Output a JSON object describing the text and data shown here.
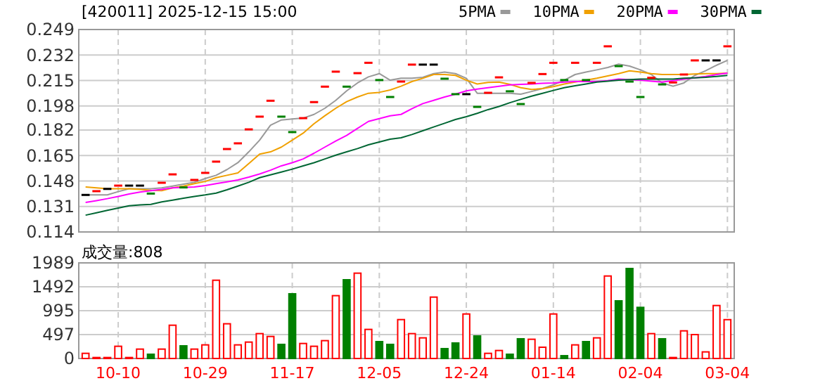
{
  "chart_data": [
    {
      "type": "candlestick",
      "title": "[420011] 2025-12-15 15:00",
      "categories": [
        null,
        null,
        null,
        null,
        null,
        null,
        null,
        null,
        null,
        null,
        null,
        null,
        null,
        null,
        null,
        null,
        null,
        null,
        null,
        null,
        null,
        null,
        null,
        null,
        null,
        null,
        null,
        null,
        null,
        null,
        null,
        null,
        null,
        null,
        null,
        null,
        null,
        null,
        null,
        null,
        null,
        null,
        null,
        null,
        null,
        null,
        null,
        null,
        null,
        null,
        null,
        null,
        null,
        null,
        null,
        null,
        null,
        null,
        null,
        null
      ],
      "ohlc": [
        [
          0.1387,
          0.1387,
          0.1387,
          0.1387
        ],
        [
          0.1412,
          0.1412,
          0.1412,
          0.1412
        ],
        [
          0.1427,
          0.1427,
          0.1427,
          0.1427
        ],
        [
          0.1449,
          0.1449,
          0.1449,
          0.1449
        ],
        [
          0.1449,
          0.1449,
          0.1449,
          0.1449
        ],
        [
          0.1449,
          0.1449,
          0.1449,
          0.1449
        ],
        [
          0.1396,
          0.1396,
          0.1396,
          0.1396
        ],
        [
          0.1468,
          0.1468,
          0.1468,
          0.1468
        ],
        [
          0.1524,
          0.1524,
          0.1524,
          0.1524
        ],
        [
          0.1437,
          0.1437,
          0.1437,
          0.1437
        ],
        [
          0.1487,
          0.1487,
          0.1487,
          0.1487
        ],
        [
          0.1534,
          0.1534,
          0.1534,
          0.1534
        ],
        [
          0.1609,
          0.1609,
          0.1609,
          0.1609
        ],
        [
          0.1693,
          0.1693,
          0.1693,
          0.1693
        ],
        [
          0.1731,
          0.1731,
          0.1731,
          0.1731
        ],
        [
          0.1824,
          0.1824,
          0.1824,
          0.1824
        ],
        [
          0.1909,
          0.1909,
          0.1909,
          0.1909
        ],
        [
          0.2015,
          0.2015,
          0.2015,
          0.2015
        ],
        [
          0.1909,
          0.1909,
          0.1909,
          0.1909
        ],
        [
          0.1806,
          0.1806,
          0.1806,
          0.1806
        ],
        [
          0.1899,
          0.1899,
          0.1899,
          0.1899
        ],
        [
          0.2006,
          0.2006,
          0.2006,
          0.2006
        ],
        [
          0.2109,
          0.2109,
          0.2109,
          0.2109
        ],
        [
          0.2209,
          0.2209,
          0.2209,
          0.2209
        ],
        [
          0.2109,
          0.2109,
          0.2109,
          0.2109
        ],
        [
          0.2199,
          0.2199,
          0.2199,
          0.2199
        ],
        [
          0.2268,
          0.2268,
          0.2268,
          0.2268
        ],
        [
          0.2153,
          0.2153,
          0.2153,
          0.2153
        ],
        [
          0.204,
          0.204,
          0.204,
          0.204
        ],
        [
          0.2143,
          0.2143,
          0.2143,
          0.2143
        ],
        [
          0.2256,
          0.2256,
          0.2256,
          0.2256
        ],
        [
          0.2256,
          0.2256,
          0.2256,
          0.2256
        ],
        [
          0.2256,
          0.2256,
          0.2256,
          0.2256
        ],
        [
          0.2162,
          0.2162,
          0.2162,
          0.2162
        ],
        [
          0.2059,
          0.2059,
          0.2059,
          0.2059
        ],
        [
          0.2059,
          0.2059,
          0.2059,
          0.2059
        ],
        [
          0.1974,
          0.1974,
          0.1974,
          0.1974
        ],
        [
          0.2068,
          0.2068,
          0.2068,
          0.2068
        ],
        [
          0.2171,
          0.2171,
          0.2171,
          0.2171
        ],
        [
          0.2078,
          0.2078,
          0.2078,
          0.2078
        ],
        [
          0.1993,
          0.1993,
          0.1993,
          0.1993
        ],
        [
          0.2134,
          0.2134,
          0.2134,
          0.2134
        ],
        [
          0.2193,
          0.2193,
          0.2193,
          0.2193
        ],
        [
          0.2268,
          0.2268,
          0.2268,
          0.2268
        ],
        [
          0.2153,
          0.2153,
          0.2153,
          0.2153
        ],
        [
          0.2268,
          0.2268,
          0.2268,
          0.2268
        ],
        [
          0.2153,
          0.2153,
          0.2153,
          0.2153
        ],
        [
          0.2268,
          0.2268,
          0.2268,
          0.2268
        ],
        [
          0.2378,
          0.2378,
          0.2378,
          0.2378
        ],
        [
          0.2246,
          0.2246,
          0.2246,
          0.2246
        ],
        [
          0.2143,
          0.2143,
          0.2143,
          0.2143
        ],
        [
          0.204,
          0.204,
          0.204,
          0.204
        ],
        [
          0.2168,
          0.2168,
          0.2168,
          0.2168
        ],
        [
          0.2124,
          0.2124,
          0.2124,
          0.2124
        ],
        [
          0.2137,
          0.2137,
          0.2137,
          0.2137
        ],
        [
          0.219,
          0.219,
          0.219,
          0.219
        ],
        [
          0.2284,
          0.2284,
          0.2284,
          0.2284
        ],
        [
          0.2284,
          0.2284,
          0.2284,
          0.2284
        ],
        [
          0.2284,
          0.2284,
          0.2284,
          0.2284
        ],
        [
          0.2378,
          0.2378,
          0.2378,
          0.2378
        ]
      ],
      "colors": [
        "#000000",
        "#ff0000",
        "#000000",
        "#ff0000",
        "#000000",
        "#000000",
        "#008000",
        "#ff0000",
        "#ff0000",
        "#008000",
        "#ff0000",
        "#ff0000",
        "#ff0000",
        "#ff0000",
        "#ff0000",
        "#ff0000",
        "#ff0000",
        "#ff0000",
        "#008000",
        "#008000",
        "#ff0000",
        "#ff0000",
        "#ff0000",
        "#ff0000",
        "#008000",
        "#ff0000",
        "#ff0000",
        "#008000",
        "#008000",
        "#ff0000",
        "#ff0000",
        "#000000",
        "#000000",
        "#008000",
        "#008000",
        "#000000",
        "#008000",
        "#ff0000",
        "#ff0000",
        "#008000",
        "#008000",
        "#ff0000",
        "#ff0000",
        "#ff0000",
        "#008000",
        "#ff0000",
        "#008000",
        "#ff0000",
        "#ff0000",
        "#008000",
        "#008000",
        "#008000",
        "#ff0000",
        "#008000",
        "#ff0000",
        "#ff0000",
        "#ff0000",
        "#000000",
        "#000000",
        "#ff0000"
      ],
      "series": [
        {
          "name": "5PMA",
          "type": "line",
          "color": "#999999",
          "values": [
            0.1387,
            0.1387,
            0.1387,
            0.1409,
            0.1428,
            0.1428,
            0.1428,
            0.1434,
            0.1446,
            0.1459,
            0.1471,
            0.1496,
            0.1518,
            0.1556,
            0.1602,
            0.1674,
            0.1752,
            0.1852,
            0.1887,
            0.1893,
            0.1899,
            0.1924,
            0.1965,
            0.2018,
            0.2081,
            0.2134,
            0.2174,
            0.2196,
            0.2152,
            0.2165,
            0.2165,
            0.2171,
            0.2196,
            0.2206,
            0.2196,
            0.2165,
            0.2065,
            0.2065,
            0.2065,
            0.2065,
            0.2059,
            0.2077,
            0.2096,
            0.2121,
            0.2152,
            0.219,
            0.2206,
            0.2221,
            0.2237,
            0.2259,
            0.2246,
            0.2221,
            0.219,
            0.2134,
            0.2112,
            0.2134,
            0.2184,
            0.2215,
            0.2252,
            0.2284
          ]
        },
        {
          "name": "10PMA",
          "type": "line",
          "color": "#f0a000",
          "values": [
            0.144,
            0.1434,
            0.1428,
            0.1428,
            0.1428,
            0.1424,
            0.1418,
            0.1415,
            0.1434,
            0.1446,
            0.1462,
            0.1477,
            0.1502,
            0.1518,
            0.1534,
            0.1596,
            0.1659,
            0.1674,
            0.1706,
            0.1752,
            0.1799,
            0.1862,
            0.1915,
            0.1965,
            0.2009,
            0.204,
            0.2065,
            0.2071,
            0.2087,
            0.2112,
            0.2143,
            0.2165,
            0.219,
            0.219,
            0.2184,
            0.2152,
            0.2127,
            0.2137,
            0.214,
            0.2124,
            0.2102,
            0.209,
            0.2096,
            0.2109,
            0.2127,
            0.214,
            0.2152,
            0.2165,
            0.2181,
            0.2196,
            0.2215,
            0.2206,
            0.2196,
            0.219,
            0.219,
            0.219,
            0.2193,
            0.2196,
            0.2196,
            0.2199
          ]
        },
        {
          "name": "20PMA",
          "type": "line",
          "color": "#ff00ff",
          "values": [
            0.1337,
            0.1349,
            0.1362,
            0.1377,
            0.1393,
            0.1406,
            0.1415,
            0.1424,
            0.1434,
            0.1437,
            0.144,
            0.1449,
            0.1462,
            0.1474,
            0.1487,
            0.1506,
            0.1527,
            0.1552,
            0.1581,
            0.1602,
            0.1627,
            0.1665,
            0.1706,
            0.1746,
            0.1784,
            0.1831,
            0.1877,
            0.1896,
            0.1915,
            0.1924,
            0.1962,
            0.1996,
            0.2018,
            0.204,
            0.2059,
            0.2081,
            0.2093,
            0.2102,
            0.2112,
            0.2121,
            0.2124,
            0.2127,
            0.2131,
            0.2134,
            0.214,
            0.2143,
            0.2143,
            0.2143,
            0.2149,
            0.2159,
            0.2156,
            0.2152,
            0.2146,
            0.214,
            0.2149,
            0.2159,
            0.2168,
            0.2177,
            0.219,
            0.2199
          ]
        },
        {
          "name": "30PMA",
          "type": "line",
          "color": "#006633",
          "values": [
            0.1252,
            0.1268,
            0.1284,
            0.1299,
            0.1315,
            0.1321,
            0.1324,
            0.134,
            0.1352,
            0.1365,
            0.1377,
            0.1387,
            0.1399,
            0.1421,
            0.1446,
            0.1471,
            0.1502,
            0.1521,
            0.154,
            0.1559,
            0.1581,
            0.1602,
            0.1627,
            0.1652,
            0.1674,
            0.1696,
            0.1721,
            0.174,
            0.1759,
            0.1768,
            0.179,
            0.1815,
            0.184,
            0.1865,
            0.189,
            0.1909,
            0.1931,
            0.1956,
            0.1977,
            0.2002,
            0.2024,
            0.2046,
            0.2065,
            0.2084,
            0.2102,
            0.2115,
            0.2127,
            0.214,
            0.2146,
            0.2152,
            0.2156,
            0.2159,
            0.2159,
            0.2159,
            0.2159,
            0.2165,
            0.2168,
            0.2171,
            0.2177,
            0.2184
          ]
        }
      ],
      "ylim": [
        0.114,
        0.249
      ],
      "yticks": [
        0.114,
        0.131,
        0.148,
        0.165,
        0.182,
        0.198,
        0.215,
        0.232,
        0.249
      ],
      "grid": true,
      "legend": "top right",
      "tick_labels": "y"
    },
    {
      "type": "bar",
      "title": "成交量:808",
      "categories": [
        null,
        null,
        null,
        "10-10",
        null,
        null,
        null,
        null,
        null,
        null,
        null,
        "10-29",
        null,
        null,
        null,
        null,
        null,
        null,
        null,
        "11-17",
        null,
        null,
        null,
        null,
        null,
        null,
        null,
        "12-05",
        null,
        null,
        null,
        null,
        null,
        null,
        null,
        "12-24",
        null,
        null,
        null,
        null,
        null,
        null,
        null,
        "01-14",
        null,
        null,
        null,
        null,
        null,
        null,
        null,
        "02-04",
        null,
        null,
        null,
        null,
        null,
        null,
        null,
        "03-04"
      ],
      "values": [
        107,
        20,
        20,
        254,
        20,
        195,
        88,
        195,
        692,
        263,
        195,
        283,
        1628,
        722,
        283,
        341,
        517,
        458,
        293,
        1346,
        312,
        254,
        371,
        1307,
        1638,
        1775,
        605,
        351,
        293,
        809,
        517,
        429,
        1277,
        205,
        322,
        926,
        468,
        107,
        166,
        88,
        410,
        400,
        234,
        926,
        58,
        283,
        351,
        429,
        1716,
        1199,
        1872,
        1063,
        517,
        410,
        20,
        575,
        497,
        137,
        1102,
        808
      ],
      "colors": [
        "#ff0000",
        "#ff0000",
        "#ff0000",
        "#ff0000",
        "#ff0000",
        "#ff0000",
        "#008000",
        "#ff0000",
        "#ff0000",
        "#008000",
        "#ff0000",
        "#ff0000",
        "#ff0000",
        "#ff0000",
        "#ff0000",
        "#ff0000",
        "#ff0000",
        "#ff0000",
        "#008000",
        "#008000",
        "#ff0000",
        "#ff0000",
        "#ff0000",
        "#ff0000",
        "#008000",
        "#ff0000",
        "#ff0000",
        "#008000",
        "#008000",
        "#ff0000",
        "#ff0000",
        "#ff0000",
        "#ff0000",
        "#008000",
        "#008000",
        "#ff0000",
        "#008000",
        "#ff0000",
        "#ff0000",
        "#008000",
        "#008000",
        "#ff0000",
        "#ff0000",
        "#ff0000",
        "#008000",
        "#ff0000",
        "#008000",
        "#ff0000",
        "#ff0000",
        "#008000",
        "#008000",
        "#008000",
        "#ff0000",
        "#008000",
        "#ff0000",
        "#ff0000",
        "#ff0000",
        "#ff0000",
        "#ff0000",
        "#ff0000"
      ],
      "ylim": [
        0,
        1989
      ],
      "yticks": [
        0,
        497,
        995,
        1492,
        1989
      ],
      "grid": true
    }
  ]
}
